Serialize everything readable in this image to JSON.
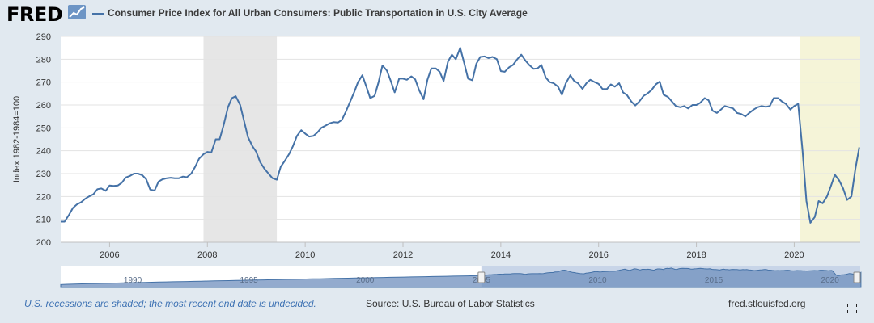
{
  "header": {
    "logo_text": "FRED",
    "title": "Consumer Price Index for All Urban Consumers: Public Transportation in U.S. City Average"
  },
  "footer": {
    "note": "U.S. recessions are shaded; the most recent end date is undecided.",
    "source": "Source: U.S. Bureau of Labor Statistics",
    "site": "fred.stlouisfed.org"
  },
  "icons": {
    "logo_graph": "line-graph-icon",
    "fullscreen": "fullscreen-icon"
  },
  "colors": {
    "brand_text": "#000000",
    "brand_icon_bg": "#6d95c5",
    "series_line": "#4572a7",
    "recession_shade": "#e6e6e6",
    "undecided_shade": "#f5f4d8",
    "note_text": "#3e72b3",
    "navigator_fill": "#6f8fbe",
    "navigator_selected": "#c8d5e8"
  },
  "navigator": {
    "tick_labels": [
      "1990",
      "1995",
      "2000",
      "2005",
      "2010",
      "2015",
      "2020"
    ],
    "x_range": [
      1986.9,
      2021.3
    ],
    "selected_range": [
      2005.0,
      2021.3
    ]
  },
  "chart_data": {
    "type": "line",
    "title": "Consumer Price Index for All Urban Consumers: Public Transportation in U.S. City Average",
    "xlabel": "",
    "ylabel": "Index 1982-1984=100",
    "xlim": [
      2005.0,
      2021.35
    ],
    "ylim": [
      200,
      290
    ],
    "xticks": [
      2006,
      2008,
      2010,
      2012,
      2014,
      2016,
      2018,
      2020
    ],
    "yticks": [
      200,
      210,
      220,
      230,
      240,
      250,
      260,
      270,
      280,
      290
    ],
    "grid": true,
    "recessions": [
      {
        "start": 2007.92,
        "end": 2009.42
      }
    ],
    "undecided_recession": {
      "start": 2020.12,
      "end": 2021.35
    },
    "series": [
      {
        "name": "Consumer Price Index for All Urban Consumers: Public Transportation in U.S. City Average",
        "x": [
          2005.0,
          2005.08,
          2005.17,
          2005.25,
          2005.33,
          2005.42,
          2005.5,
          2005.58,
          2005.67,
          2005.75,
          2005.83,
          2005.92,
          2006.0,
          2006.08,
          2006.17,
          2006.25,
          2006.33,
          2006.42,
          2006.5,
          2006.58,
          2006.67,
          2006.75,
          2006.83,
          2006.92,
          2007.0,
          2007.08,
          2007.17,
          2007.25,
          2007.33,
          2007.42,
          2007.5,
          2007.58,
          2007.67,
          2007.75,
          2007.83,
          2007.92,
          2008.0,
          2008.08,
          2008.17,
          2008.25,
          2008.33,
          2008.42,
          2008.5,
          2008.58,
          2008.67,
          2008.75,
          2008.83,
          2008.92,
          2009.0,
          2009.08,
          2009.17,
          2009.25,
          2009.33,
          2009.42,
          2009.5,
          2009.58,
          2009.67,
          2009.75,
          2009.83,
          2009.92,
          2010.0,
          2010.08,
          2010.17,
          2010.25,
          2010.33,
          2010.42,
          2010.5,
          2010.58,
          2010.67,
          2010.75,
          2010.83,
          2010.92,
          2011.0,
          2011.08,
          2011.17,
          2011.25,
          2011.33,
          2011.42,
          2011.5,
          2011.58,
          2011.67,
          2011.75,
          2011.83,
          2011.92,
          2012.0,
          2012.08,
          2012.17,
          2012.25,
          2012.33,
          2012.42,
          2012.5,
          2012.58,
          2012.67,
          2012.75,
          2012.83,
          2012.92,
          2013.0,
          2013.08,
          2013.17,
          2013.25,
          2013.33,
          2013.42,
          2013.5,
          2013.58,
          2013.67,
          2013.75,
          2013.83,
          2013.92,
          2014.0,
          2014.08,
          2014.17,
          2014.25,
          2014.33,
          2014.42,
          2014.5,
          2014.58,
          2014.67,
          2014.75,
          2014.83,
          2014.92,
          2015.0,
          2015.08,
          2015.17,
          2015.25,
          2015.33,
          2015.42,
          2015.5,
          2015.58,
          2015.67,
          2015.75,
          2015.83,
          2015.92,
          2016.0,
          2016.08,
          2016.17,
          2016.25,
          2016.33,
          2016.42,
          2016.5,
          2016.58,
          2016.67,
          2016.75,
          2016.83,
          2016.92,
          2017.0,
          2017.08,
          2017.17,
          2017.25,
          2017.33,
          2017.42,
          2017.5,
          2017.58,
          2017.67,
          2017.75,
          2017.83,
          2017.92,
          2018.0,
          2018.08,
          2018.17,
          2018.25,
          2018.33,
          2018.42,
          2018.5,
          2018.58,
          2018.67,
          2018.75,
          2018.83,
          2018.92,
          2019.0,
          2019.08,
          2019.17,
          2019.25,
          2019.33,
          2019.42,
          2019.5,
          2019.58,
          2019.67,
          2019.75,
          2019.83,
          2019.92,
          2020.0,
          2020.08,
          2020.17,
          2020.25,
          2020.33,
          2020.42,
          2020.5,
          2020.58,
          2020.67,
          2020.75,
          2020.83,
          2020.92,
          2021.0,
          2021.08,
          2021.17,
          2021.25,
          2021.33
        ],
        "y": [
          209.0,
          209.0,
          212.0,
          215.0,
          216.5,
          217.5,
          219.0,
          220.0,
          221.0,
          223.2,
          223.5,
          222.5,
          224.8,
          224.6,
          224.8,
          226.0,
          228.3,
          229.0,
          230.0,
          230.0,
          229.3,
          227.5,
          223.0,
          222.6,
          226.5,
          227.5,
          228.0,
          228.2,
          228.0,
          228.0,
          228.7,
          228.4,
          230.0,
          233.0,
          236.5,
          238.5,
          239.5,
          239.2,
          245.0,
          245.0,
          251.0,
          259.0,
          263.0,
          263.8,
          260.0,
          253.0,
          246.0,
          242.0,
          239.5,
          235.0,
          232.0,
          230.0,
          228.0,
          227.3,
          233.0,
          235.5,
          238.5,
          242.0,
          246.5,
          249.0,
          247.5,
          246.2,
          246.5,
          248.0,
          250.0,
          251.0,
          252.0,
          252.5,
          252.3,
          253.5,
          257.0,
          261.5,
          265.5,
          270.0,
          273.0,
          268.0,
          263.0,
          264.0,
          270.0,
          277.3,
          275.0,
          270.5,
          265.5,
          271.5,
          271.5,
          271.0,
          272.5,
          271.2,
          266.5,
          262.5,
          271.0,
          276.0,
          276.0,
          274.5,
          270.5,
          279.0,
          282.0,
          280.0,
          285.0,
          278.5,
          271.5,
          270.8,
          278.0,
          281.0,
          281.2,
          280.5,
          281.0,
          280.0,
          274.8,
          274.5,
          276.5,
          277.5,
          279.8,
          282.0,
          279.5,
          277.5,
          275.8,
          276.0,
          277.5,
          272.0,
          270.0,
          269.5,
          268.0,
          264.5,
          269.5,
          273.0,
          270.5,
          269.5,
          267.0,
          269.5,
          271.0,
          270.0,
          269.2,
          267.0,
          267.0,
          269.0,
          268.0,
          269.5,
          265.5,
          264.3,
          261.5,
          259.8,
          261.5,
          264.0,
          265.0,
          266.5,
          269.0,
          270.2,
          264.5,
          263.5,
          261.5,
          259.5,
          259.0,
          259.5,
          258.5,
          260.0,
          260.0,
          261.0,
          263.0,
          262.0,
          257.5,
          256.5,
          258.0,
          259.5,
          259.0,
          258.5,
          256.5,
          256.0,
          255.0,
          256.5,
          258.0,
          259.0,
          259.5,
          259.2,
          259.5,
          263.0,
          263.0,
          261.5,
          260.5,
          258.0,
          259.5,
          260.5,
          240.0,
          218.0,
          208.5,
          211.0,
          218.0,
          217.0,
          220.0,
          224.5,
          229.5,
          227.0,
          223.5,
          218.5,
          220.0,
          232.0,
          241.5
        ]
      }
    ]
  }
}
